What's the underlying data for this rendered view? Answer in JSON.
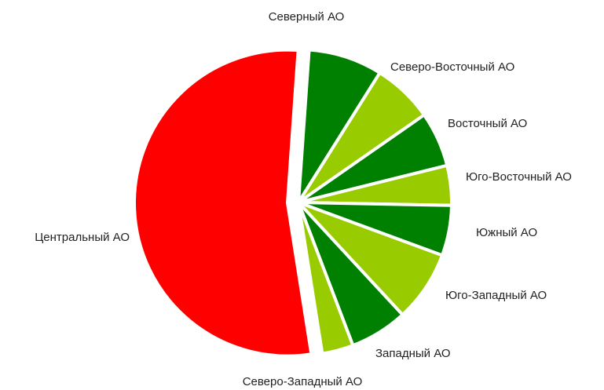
{
  "chart_data": {
    "type": "pie",
    "categories": [
      "Северный АО",
      "Северо-Восточный АО",
      "Восточный АО",
      "Юго-Восточный АО",
      "Южный АО",
      "Юго-Западный АО",
      "Западный АО",
      "Северо-Западный АО",
      "Центральный АО"
    ],
    "values": [
      7.8,
      6.4,
      5.8,
      4.2,
      5.3,
      7.5,
      6.1,
      3.3,
      53.6
    ],
    "colors": [
      "#008000",
      "#99cc00",
      "#008000",
      "#99cc00",
      "#008000",
      "#99cc00",
      "#008000",
      "#99cc00",
      "#ff0000"
    ]
  }
}
